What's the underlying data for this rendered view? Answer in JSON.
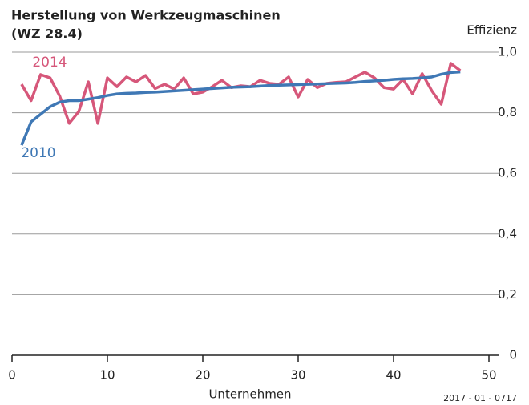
{
  "chart_data": {
    "type": "line",
    "title": [
      "Herstellung von Werkzeugmaschinen",
      "(WZ 28.4)"
    ],
    "y_label": "Effizienz",
    "x_label": "Unternehmen",
    "source": "2017 - 01 - 0717",
    "x": [
      1,
      2,
      3,
      4,
      5,
      6,
      7,
      8,
      9,
      10,
      11,
      12,
      13,
      14,
      15,
      16,
      17,
      18,
      19,
      20,
      21,
      22,
      23,
      24,
      25,
      26,
      27,
      28,
      29,
      30,
      31,
      32,
      33,
      34,
      35,
      36,
      37,
      38,
      39,
      40,
      41,
      42,
      43,
      44,
      45,
      46,
      47
    ],
    "series": [
      {
        "name": "2014",
        "color": "#d6577a",
        "values": [
          0.894,
          0.84,
          0.926,
          0.915,
          0.855,
          0.765,
          0.804,
          0.902,
          0.765,
          0.915,
          0.886,
          0.918,
          0.902,
          0.923,
          0.88,
          0.894,
          0.878,
          0.915,
          0.862,
          0.868,
          0.886,
          0.907,
          0.883,
          0.889,
          0.886,
          0.907,
          0.897,
          0.894,
          0.918,
          0.852,
          0.91,
          0.883,
          0.897,
          0.9,
          0.902,
          0.918,
          0.934,
          0.915,
          0.883,
          0.878,
          0.91,
          0.862,
          0.929,
          0.873,
          0.828,
          0.963,
          0.939
        ]
      },
      {
        "name": "2010",
        "color": "#3f78b5",
        "values": [
          0.693,
          0.77,
          0.795,
          0.82,
          0.835,
          0.84,
          0.84,
          0.845,
          0.85,
          0.857,
          0.862,
          0.864,
          0.865,
          0.867,
          0.868,
          0.87,
          0.872,
          0.874,
          0.876,
          0.878,
          0.88,
          0.882,
          0.884,
          0.885,
          0.886,
          0.888,
          0.89,
          0.891,
          0.892,
          0.893,
          0.894,
          0.895,
          0.896,
          0.897,
          0.898,
          0.9,
          0.903,
          0.905,
          0.907,
          0.91,
          0.912,
          0.913,
          0.915,
          0.918,
          0.927,
          0.933,
          0.935
        ]
      }
    ],
    "xlim": [
      0,
      50
    ],
    "xticks": [
      0,
      10,
      20,
      30,
      40,
      50
    ],
    "ylim": [
      0,
      1
    ],
    "yticks": [
      0,
      {
        "value": 0.2,
        "label": "0,2"
      },
      {
        "value": 0.4,
        "label": "0,4"
      },
      {
        "value": 0.6,
        "label": "0,6"
      },
      {
        "value": 0.8,
        "label": "0,8"
      },
      {
        "value": 1,
        "label": "1,0"
      }
    ],
    "grid": true
  }
}
